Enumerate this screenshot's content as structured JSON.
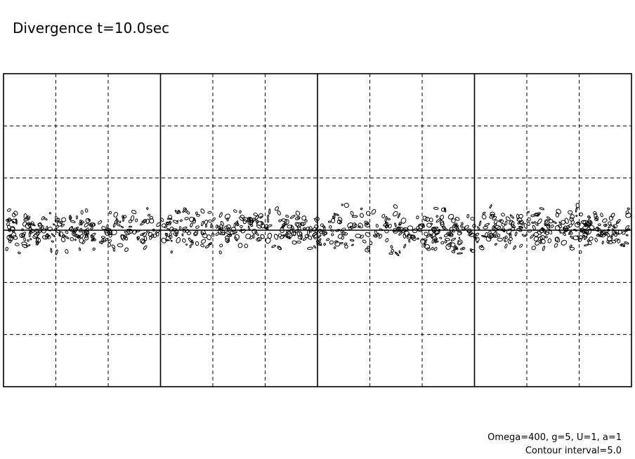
{
  "title": "Divergence t=10.0sec",
  "annotations": [
    "Omega=400, g=5, U=1, a=1",
    "Contour interval=5.0"
  ]
}
